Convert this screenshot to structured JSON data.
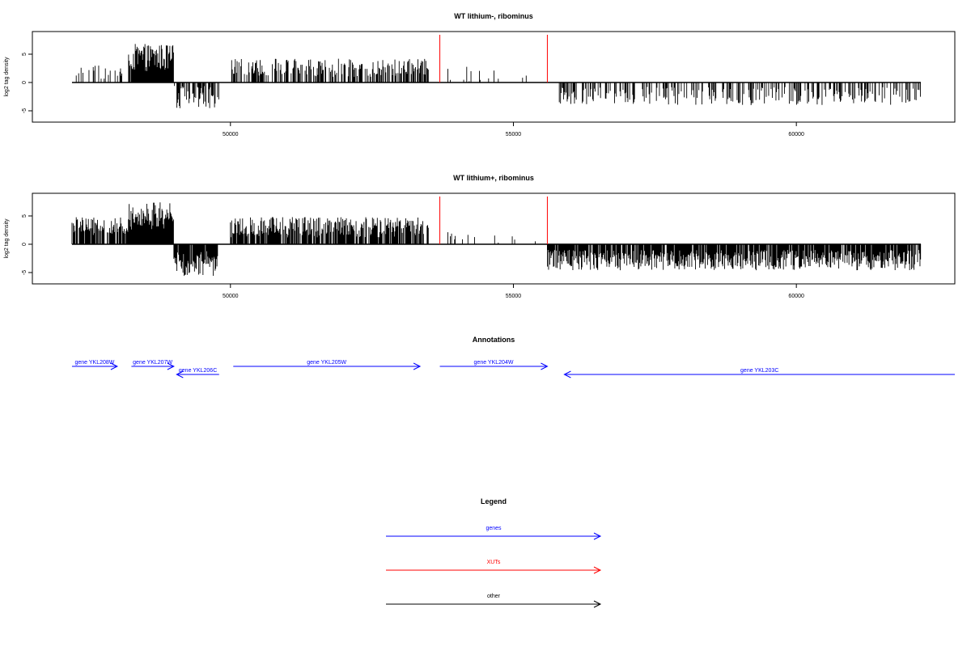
{
  "chart_data": [
    {
      "type": "bar",
      "title": "WT lithium-, ribominus",
      "ylabel": "log2 tag density",
      "xlim": [
        46500,
        62800
      ],
      "ylim": [
        -7,
        9
      ],
      "x_ticks": [
        50000,
        55000,
        60000
      ],
      "y_ticks": [
        -5,
        0,
        5
      ],
      "series_color": "#000000",
      "highlight_color": "#ff0000",
      "highlight_lines": [
        53700,
        55600
      ],
      "x_range": [
        47200,
        62200
      ],
      "segments": [
        {
          "x": [
            47200,
            48200
          ],
          "amp": 1.8,
          "sign": 1,
          "density": 0.18,
          "jitter": 1.2
        },
        {
          "x": [
            48200,
            49000
          ],
          "amp": 4.4,
          "sign": 1,
          "density": 0.95,
          "jitter": 2.4
        },
        {
          "x": [
            49000,
            49800
          ],
          "amp": 2.6,
          "sign": -1,
          "density": 0.55,
          "jitter": 2.0
        },
        {
          "x": [
            50000,
            53500
          ],
          "amp": 2.6,
          "sign": 1,
          "density": 0.55,
          "jitter": 1.6
        },
        {
          "x": [
            53800,
            55400
          ],
          "amp": 1.4,
          "sign": 1,
          "density": 0.08,
          "jitter": 1.4
        },
        {
          "x": [
            55800,
            62200
          ],
          "amp": 2.4,
          "sign": -1,
          "density": 0.35,
          "jitter": 1.6
        }
      ]
    },
    {
      "type": "bar",
      "title": "WT lithium+, ribominus",
      "ylabel": "log2 tag density",
      "xlim": [
        46500,
        62800
      ],
      "ylim": [
        -7,
        9
      ],
      "x_ticks": [
        50000,
        55000,
        60000
      ],
      "y_ticks": [
        -5,
        0,
        5
      ],
      "series_color": "#000000",
      "highlight_color": "#ff0000",
      "highlight_lines": [
        53700,
        55600
      ],
      "x_range": [
        47200,
        62200
      ],
      "segments": [
        {
          "x": [
            47200,
            48200
          ],
          "amp": 3.2,
          "sign": 1,
          "density": 0.75,
          "jitter": 1.6
        },
        {
          "x": [
            48200,
            49000
          ],
          "amp": 5.0,
          "sign": 1,
          "density": 1.0,
          "jitter": 2.4
        },
        {
          "x": [
            49000,
            49800
          ],
          "amp": 3.4,
          "sign": -1,
          "density": 0.9,
          "jitter": 2.2
        },
        {
          "x": [
            50000,
            53500
          ],
          "amp": 3.0,
          "sign": 1,
          "density": 0.8,
          "jitter": 1.8
        },
        {
          "x": [
            53800,
            55400
          ],
          "amp": 1.4,
          "sign": 1,
          "density": 0.1,
          "jitter": 1.2
        },
        {
          "x": [
            55600,
            62200
          ],
          "amp": 2.8,
          "sign": -1,
          "density": 0.85,
          "jitter": 1.8
        }
      ]
    }
  ],
  "annotations": {
    "title": "Annotations",
    "xlim": [
      46500,
      62800
    ],
    "color": "#0000ff",
    "genes": [
      {
        "label": "gene YKL208W",
        "start": 47200,
        "end": 48000,
        "strand": "+",
        "row": 0
      },
      {
        "label": "gene YKL207W",
        "start": 48250,
        "end": 49000,
        "strand": "+",
        "row": 0
      },
      {
        "label": "gene YKL206C",
        "start": 49050,
        "end": 49800,
        "strand": "-",
        "row": 1
      },
      {
        "label": "gene YKL205W",
        "start": 50050,
        "end": 53350,
        "strand": "+",
        "row": 0
      },
      {
        "label": "gene YKL204W",
        "start": 53700,
        "end": 55600,
        "strand": "+",
        "row": 0
      },
      {
        "label": "gene YKL203C",
        "start": 55900,
        "end": 62800,
        "strand": "-",
        "row": 1
      }
    ]
  },
  "legend": {
    "title": "Legend",
    "items": [
      {
        "label": "genes",
        "color": "#0000ff"
      },
      {
        "label": "XUTs",
        "color": "#ff0000"
      },
      {
        "label": "other",
        "color": "#000000"
      }
    ]
  }
}
